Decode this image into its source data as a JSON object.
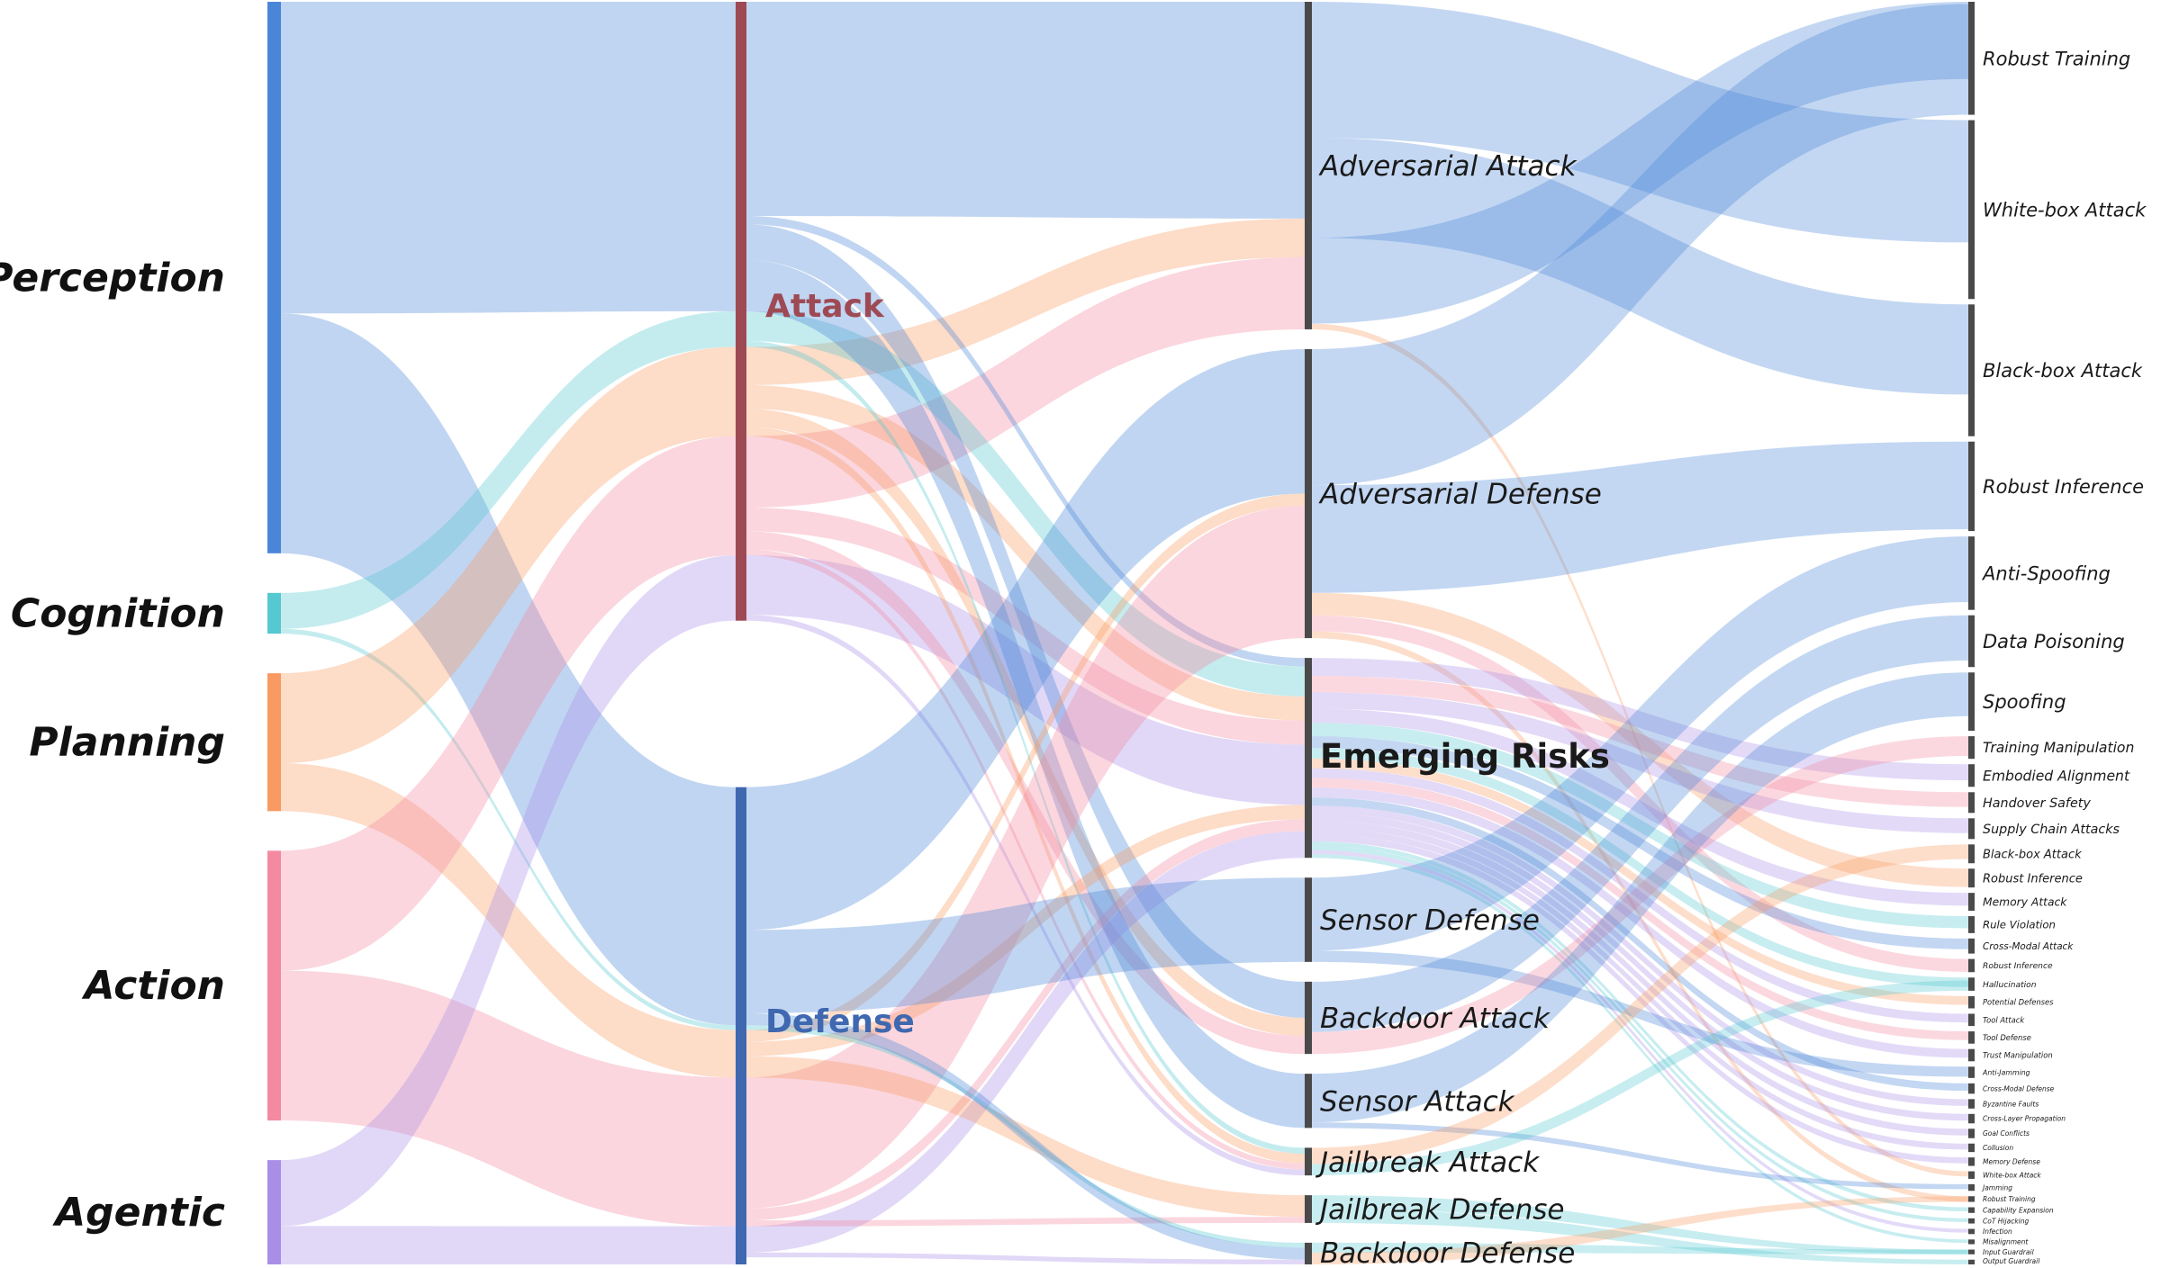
{
  "palette": {
    "Perception": "#4a86d8",
    "Cognition": "#55c8d0",
    "Planning": "#f99a62",
    "Action": "#f48aa1",
    "Agentic": "#a98ee8",
    "Attack": "#9e4a54",
    "Defense": "#3f68b0",
    "category_bar": "#4a4a4a",
    "Emerging Risks text": [
      "#c8263a",
      "#3f68b0"
    ]
  },
  "columns": [
    [
      "Perception",
      "Cognition",
      "Planning",
      "Action",
      "Agentic"
    ],
    [
      "Attack",
      "Defense"
    ],
    [
      "Adversarial Attack",
      "Adversarial Defense",
      "Emerging Risks",
      "Sensor Defense",
      "Backdoor Attack",
      "Sensor Attack",
      "Jailbreak Attack",
      "Jailbreak Defense",
      "Backdoor Defense"
    ],
    [
      "Robust Training",
      "White-box Attack",
      "Black-box Attack",
      "Robust Inference",
      "Anti-Spoofing",
      "Data Poisoning",
      "Spoofing",
      "Training Manipulation",
      "Embodied Alignment",
      "Handover Safety",
      "Supply Chain Attacks",
      "Black-box Attack",
      "Robust Inference",
      "Memory Attack",
      "Rule Violation",
      "Cross-Modal Attack",
      "Robust Inference",
      "Hallucination",
      "Potential Defenses",
      "Tool Attack",
      "Tool Defense",
      "Trust Manipulation",
      "Anti-Jamming",
      "Cross-Modal Defense",
      "Byzantine Faults",
      "Cross-Layer Propagation",
      "Goal Conflicts",
      "Collusion",
      "Memory Defense",
      "White-box Attack",
      "Jamming",
      "Robust Training",
      "Capability Expansion",
      "CoT Hijacking",
      "Infection",
      "Misalignment",
      "Input Guardrail",
      "Output Guardrail"
    ]
  ],
  "flows_col0_col1": [
    [
      "Perception",
      "Attack",
      26
    ],
    [
      "Perception",
      "Defense",
      20
    ],
    [
      "Cognition",
      "Attack",
      3
    ],
    [
      "Cognition",
      "Defense",
      0.4
    ],
    [
      "Planning",
      "Attack",
      7.5
    ],
    [
      "Planning",
      "Defense",
      4
    ],
    [
      "Action",
      "Attack",
      10
    ],
    [
      "Action",
      "Defense",
      12.5
    ],
    [
      "Agentic",
      "Attack",
      5.5
    ],
    [
      "Agentic",
      "Defense",
      3.2
    ]
  ],
  "flows_col1_col2": [
    [
      "Attack",
      "Adversarial Attack",
      "Perception",
      18
    ],
    [
      "Attack",
      "Adversarial Attack",
      "Planning",
      3.2
    ],
    [
      "Attack",
      "Adversarial Attack",
      "Action",
      6
    ],
    [
      "Attack",
      "Emerging Risks",
      "Perception",
      0.7
    ],
    [
      "Attack",
      "Emerging Risks",
      "Cognition",
      2.5
    ],
    [
      "Attack",
      "Emerging Risks",
      "Planning",
      2
    ],
    [
      "Attack",
      "Emerging Risks",
      "Action",
      2
    ],
    [
      "Attack",
      "Emerging Risks",
      "Agentic",
      5
    ],
    [
      "Attack",
      "Backdoor Attack",
      "Perception",
      3
    ],
    [
      "Attack",
      "Backdoor Attack",
      "Planning",
      1.5
    ],
    [
      "Attack",
      "Backdoor Attack",
      "Action",
      1.5
    ],
    [
      "Attack",
      "Sensor Attack",
      "Perception",
      4.5
    ],
    [
      "Attack",
      "Jailbreak Attack",
      "Cognition",
      0.5
    ],
    [
      "Attack",
      "Jailbreak Attack",
      "Planning",
      0.8
    ],
    [
      "Attack",
      "Jailbreak Attack",
      "Action",
      0.5
    ],
    [
      "Attack",
      "Jailbreak Attack",
      "Agentic",
      0.5
    ],
    [
      "Defense",
      "Adversarial Defense",
      "Perception",
      12
    ],
    [
      "Defense",
      "Adversarial Defense",
      "Planning",
      1
    ],
    [
      "Defense",
      "Adversarial Defense",
      "Action",
      11
    ],
    [
      "Defense",
      "Emerging Risks",
      "Planning",
      1.2
    ],
    [
      "Defense",
      "Emerging Risks",
      "Action",
      1
    ],
    [
      "Defense",
      "Emerging Risks",
      "Agentic",
      2.2
    ],
    [
      "Defense",
      "Sensor Defense",
      "Perception",
      7
    ],
    [
      "Defense",
      "Jailbreak Defense",
      "Planning",
      1.8
    ],
    [
      "Defense",
      "Jailbreak Defense",
      "Action",
      0.5
    ],
    [
      "Defense",
      "Backdoor Defense",
      "Cognition",
      0.4
    ],
    [
      "Defense",
      "Backdoor Defense",
      "Perception",
      1
    ],
    [
      "Defense",
      "Backdoor Defense",
      "Agentic",
      0.4
    ]
  ]
}
